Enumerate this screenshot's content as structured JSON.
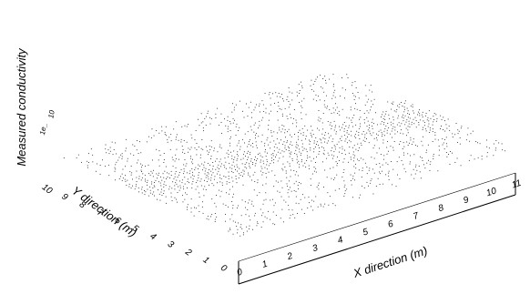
{
  "chart_data": {
    "type": "scatter",
    "subtype": "3d-surface-point-cloud",
    "zlabel": "Measured conductivity",
    "xlabel": "X direction (m)",
    "ylabel": "Y direction (m)",
    "xticks": [
      "0",
      "1",
      "2",
      "3",
      "4",
      "5",
      "6",
      "7",
      "8",
      "9",
      "10",
      "11"
    ],
    "yticks": [
      "0",
      "1",
      "2",
      "3",
      "4",
      "5",
      "6",
      "7",
      "8",
      "9",
      "10"
    ],
    "zticks": [
      "1e_",
      "10"
    ],
    "xlim": [
      0,
      11
    ],
    "ylim": [
      0,
      10
    ],
    "grid": false,
    "legend": "none",
    "point_color": "#222222"
  }
}
